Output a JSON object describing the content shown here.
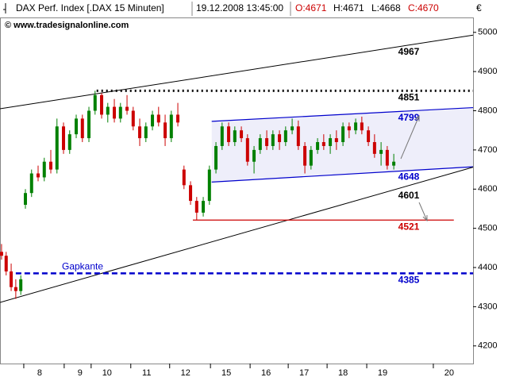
{
  "chart_data": {
    "type": "candlestick",
    "header": {
      "instrument": "DAX Perf. Index [.DAX  15 Minuten]",
      "datetime": "19.12.2008 13:45:00",
      "open": "O:4671",
      "high": "H:4671",
      "low": "L:4668",
      "close": "C:4670"
    },
    "watermark": "© www.tradesignalonline.com",
    "currency": "€",
    "up_color": "#008000",
    "down_color": "#cc0000",
    "x": [
      -0.99,
      -0.87,
      -0.74,
      -0.62,
      -0.49,
      -0.37,
      -0.21,
      -0.04,
      0.12,
      0.29,
      0.45,
      0.62,
      0.78,
      0.95,
      1.11,
      1.28,
      1.44,
      1.61,
      1.77,
      1.94,
      2.1,
      2.27,
      2.43,
      2.6,
      2.76,
      2.93,
      3.09,
      3.26,
      3.42,
      3.59,
      3.75,
      3.92,
      4.08,
      4.25,
      4.41,
      4.58,
      4.74,
      4.91,
      5.07,
      5.24,
      5.4,
      5.57,
      5.73,
      5.9,
      6.06,
      6.23,
      6.39,
      6.56,
      6.72,
      6.89,
      7.05,
      7.22,
      7.38,
      7.55,
      7.71,
      7.88,
      8.04,
      8.21,
      8.37,
      8.54,
      8.7,
      8.87,
      9.03,
      9.2
    ],
    "open": [
      4440,
      4430,
      4390,
      4350,
      4340,
      4560,
      4590,
      4640,
      4630,
      4670,
      4650,
      4760,
      4700,
      4740,
      4780,
      4730,
      4800,
      4840,
      4790,
      4810,
      4780,
      4810,
      4800,
      4760,
      4730,
      4760,
      4790,
      4770,
      4730,
      4790,
      4650,
      4610,
      4570,
      4540,
      4570,
      4650,
      4710,
      4760,
      4720,
      4750,
      4730,
      4670,
      4700,
      4730,
      4710,
      4740,
      4720,
      4750,
      4760,
      4710,
      4660,
      4700,
      4720,
      4710,
      4730,
      4720,
      4760,
      4750,
      4770,
      4750,
      4720,
      4690,
      4700,
      4660
    ],
    "high": [
      4460,
      4440,
      4410,
      4370,
      4380,
      4600,
      4650,
      4660,
      4680,
      4700,
      4780,
      4770,
      4750,
      4790,
      4790,
      4810,
      4851,
      4845,
      4820,
      4830,
      4820,
      4840,
      4810,
      4780,
      4770,
      4800,
      4810,
      4790,
      4800,
      4820,
      4660,
      4620,
      4580,
      4580,
      4660,
      4720,
      4770,
      4770,
      4760,
      4760,
      4740,
      4710,
      4740,
      4750,
      4750,
      4750,
      4760,
      4780,
      4775,
      4720,
      4710,
      4730,
      4740,
      4740,
      4750,
      4770,
      4770,
      4780,
      4785,
      4760,
      4740,
      4720,
      4710,
      4690
    ],
    "low": [
      4420,
      4380,
      4340,
      4320,
      4330,
      4550,
      4580,
      4620,
      4620,
      4640,
      4640,
      4690,
      4690,
      4730,
      4720,
      4720,
      4790,
      4780,
      4770,
      4770,
      4770,
      4790,
      4750,
      4710,
      4720,
      4750,
      4760,
      4710,
      4720,
      4760,
      4600,
      4560,
      4521,
      4530,
      4560,
      4640,
      4700,
      4710,
      4710,
      4720,
      4660,
      4640,
      4690,
      4700,
      4700,
      4700,
      4710,
      4740,
      4700,
      4640,
      4650,
      4690,
      4700,
      4690,
      4700,
      4710,
      4730,
      4740,
      4740,
      4710,
      4680,
      4660,
      4650,
      4650
    ],
    "close": [
      4430,
      4390,
      4350,
      4340,
      4370,
      4590,
      4640,
      4630,
      4670,
      4650,
      4760,
      4700,
      4740,
      4780,
      4730,
      4800,
      4840,
      4790,
      4810,
      4780,
      4810,
      4800,
      4760,
      4730,
      4760,
      4790,
      4770,
      4730,
      4790,
      4770,
      4610,
      4570,
      4540,
      4570,
      4650,
      4710,
      4760,
      4720,
      4750,
      4730,
      4670,
      4700,
      4730,
      4710,
      4740,
      4720,
      4750,
      4760,
      4710,
      4660,
      4700,
      4720,
      4710,
      4730,
      4720,
      4760,
      4750,
      4770,
      4750,
      4720,
      4690,
      4700,
      4660,
      4670
    ],
    "xlim": [
      -1.03,
      11.26
    ],
    "xticks": [
      {
        "value": 0,
        "label": "8"
      },
      {
        "value": 1.05,
        "label": "9"
      },
      {
        "value": 1.75,
        "label": "10"
      },
      {
        "value": 2.78,
        "label": "11"
      },
      {
        "value": 3.79,
        "label": "12"
      },
      {
        "value": 4.85,
        "label": "15"
      },
      {
        "value": 5.88,
        "label": "16"
      },
      {
        "value": 6.87,
        "label": "17"
      },
      {
        "value": 7.88,
        "label": "18"
      },
      {
        "value": 8.91,
        "label": "19"
      },
      {
        "value": 10.64,
        "label": "20"
      }
    ],
    "ylim": [
      4155,
      5038
    ],
    "yticks": [
      4200,
      4300,
      4400,
      4500,
      4600,
      4700,
      4800,
      4900,
      5000
    ],
    "channel": {
      "color": "#0000cc",
      "fill": "#eeeefa",
      "upper": {
        "x": [
          4.47,
          11.26
        ],
        "y": [
          4773,
          4808
        ]
      },
      "lower": {
        "x": [
          4.47,
          11.26
        ],
        "y": [
          4618,
          4657
        ]
      }
    },
    "trendlines": [
      {
        "color": "#000000",
        "x": [
          -1.03,
          11.26
        ],
        "y": [
          4805,
          4993
        ]
      },
      {
        "color": "#000000",
        "x": [
          -1.03,
          11.26
        ],
        "y": [
          4311,
          4656
        ]
      }
    ],
    "levels": [
      {
        "value": 4851,
        "label": "4851",
        "color": "#000000",
        "style": "dotted",
        "from": 1.48,
        "to": 11.26
      },
      {
        "value": 4521,
        "label": "4521",
        "color": "#cc0000",
        "style": "solid",
        "from": 3.98,
        "to": 10.76
      },
      {
        "value": 4385,
        "label": "4385",
        "color": "#0000cc",
        "style": "dashed",
        "from": -0.62,
        "to": 11.26
      }
    ],
    "annotations": [
      {
        "value": 4967,
        "label": "4967",
        "color": "#000000"
      },
      {
        "value": 4799,
        "label": "4799",
        "color": "#0000cc"
      },
      {
        "value": 4648,
        "label": "4648",
        "color": "#0000cc"
      },
      {
        "value": 4601,
        "label": "4601",
        "color": "#000000"
      }
    ],
    "gap_label": "Gapkante"
  }
}
